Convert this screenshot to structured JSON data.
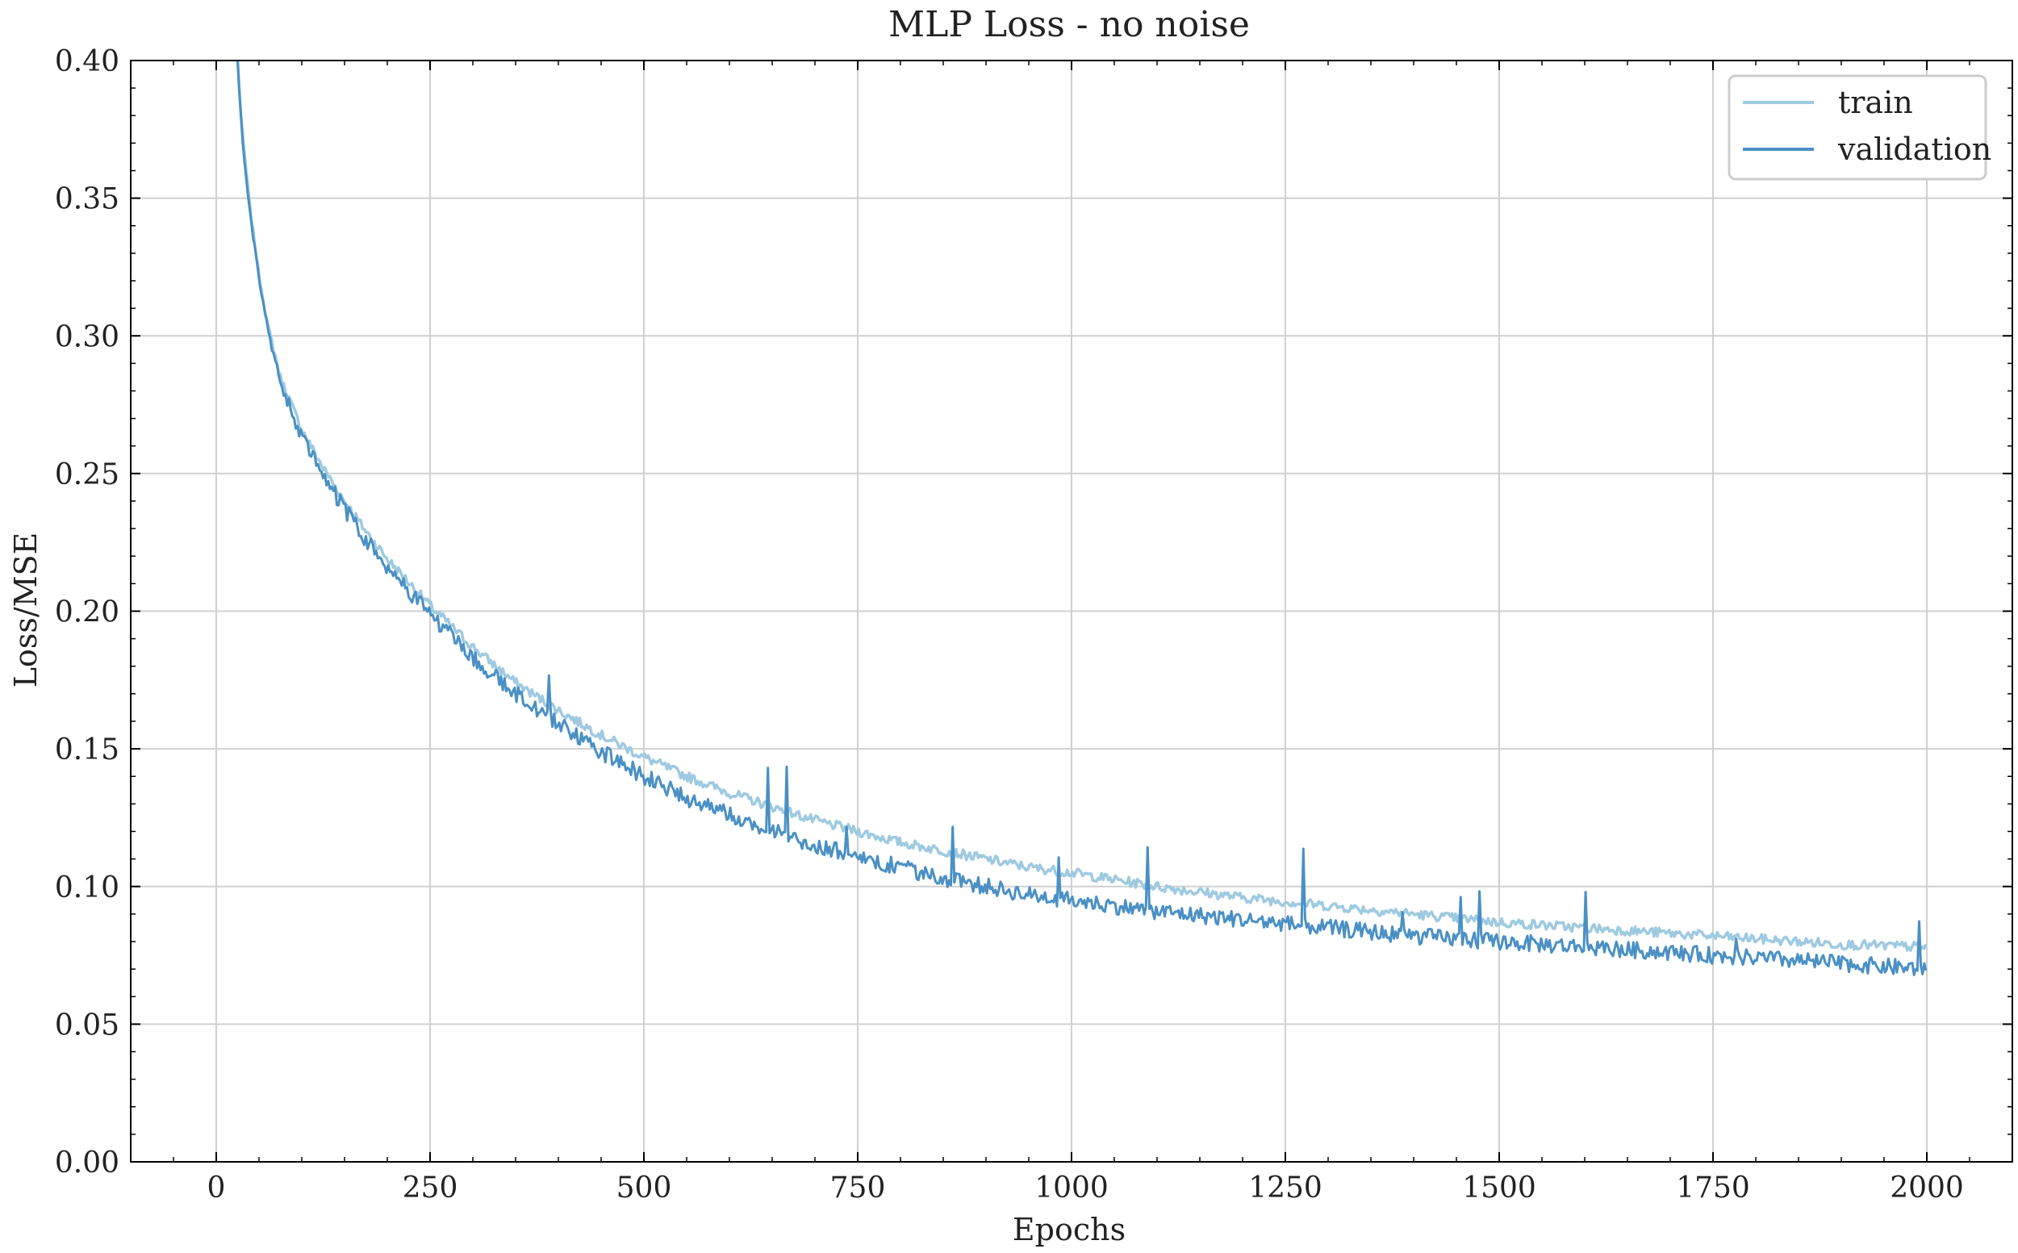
{
  "chart_data": {
    "type": "line",
    "title": "MLP Loss - no noise",
    "xlabel": "Epochs",
    "ylabel": "Loss/MSE",
    "xlim": [
      -100,
      2100
    ],
    "ylim": [
      0.0,
      0.4
    ],
    "xticks": [
      0,
      250,
      500,
      750,
      1000,
      1250,
      1500,
      1750,
      2000
    ],
    "xtick_labels": [
      "0",
      "250",
      "500",
      "750",
      "1000",
      "1250",
      "1500",
      "1750",
      "2000"
    ],
    "yticks": [
      0.0,
      0.05,
      0.1,
      0.15,
      0.2,
      0.25,
      0.3,
      0.35,
      0.4
    ],
    "ytick_labels": [
      "0.00",
      "0.05",
      "0.10",
      "0.15",
      "0.20",
      "0.25",
      "0.30",
      "0.35",
      "0.40"
    ],
    "grid": true,
    "legend_position": "top-right",
    "series": [
      {
        "name": "train",
        "color": "#9ecae1",
        "x": [
          25,
          30,
          40,
          50,
          60,
          75,
          100,
          125,
          150,
          175,
          200,
          250,
          300,
          350,
          400,
          450,
          500,
          550,
          600,
          650,
          700,
          750,
          800,
          850,
          900,
          950,
          1000,
          1100,
          1200,
          1300,
          1400,
          1500,
          1600,
          1700,
          1800,
          1900,
          2000
        ],
        "y": [
          0.4,
          0.375,
          0.345,
          0.322,
          0.304,
          0.285,
          0.266,
          0.252,
          0.24,
          0.229,
          0.219,
          0.202,
          0.187,
          0.174,
          0.164,
          0.155,
          0.147,
          0.14,
          0.134,
          0.129,
          0.124,
          0.12,
          0.116,
          0.113,
          0.11,
          0.107,
          0.105,
          0.1,
          0.096,
          0.093,
          0.09,
          0.087,
          0.085,
          0.083,
          0.081,
          0.079,
          0.078
        ]
      },
      {
        "name": "validation",
        "color": "#4a90c4",
        "x": [
          25,
          30,
          40,
          50,
          60,
          75,
          100,
          125,
          150,
          175,
          200,
          250,
          300,
          350,
          400,
          450,
          500,
          550,
          600,
          650,
          700,
          750,
          800,
          850,
          900,
          950,
          1000,
          1100,
          1200,
          1300,
          1400,
          1500,
          1600,
          1700,
          1800,
          1900,
          2000
        ],
        "y": [
          0.4,
          0.373,
          0.343,
          0.32,
          0.302,
          0.283,
          0.263,
          0.249,
          0.237,
          0.226,
          0.216,
          0.199,
          0.183,
          0.17,
          0.159,
          0.149,
          0.14,
          0.132,
          0.126,
          0.12,
          0.115,
          0.111,
          0.107,
          0.103,
          0.1,
          0.097,
          0.095,
          0.091,
          0.088,
          0.085,
          0.082,
          0.08,
          0.078,
          0.076,
          0.074,
          0.072,
          0.07
        ]
      }
    ]
  }
}
